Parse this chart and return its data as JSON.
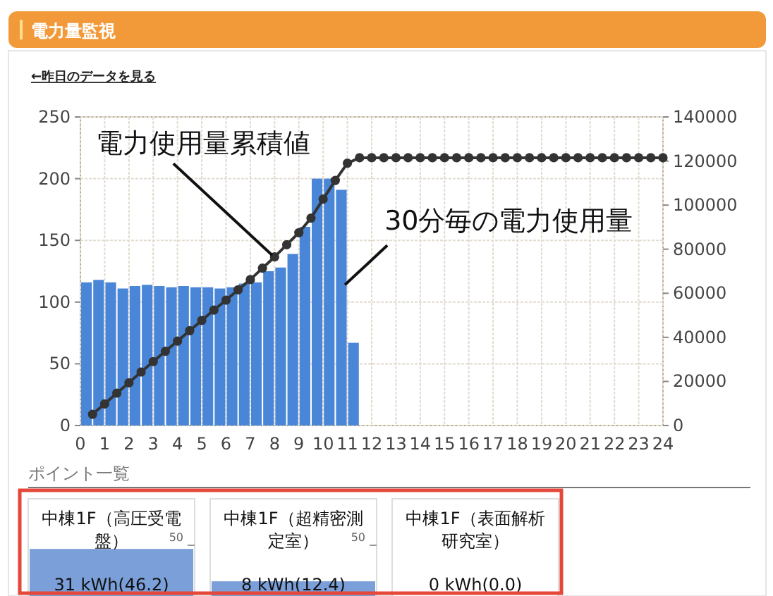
{
  "chart_data": [
    {
      "type": "bar",
      "title": "電力量監視",
      "x": [
        0.25,
        0.75,
        1.25,
        1.75,
        2.25,
        2.75,
        3.25,
        3.75,
        4.25,
        4.75,
        5.25,
        5.75,
        6.25,
        6.75,
        7.25,
        7.75,
        8.25,
        8.75,
        9.25,
        9.75,
        10.25,
        10.75,
        11.25
      ],
      "series": [
        {
          "type": "bar",
          "color": "#4a86d8",
          "values": [
            116,
            118,
            116,
            111,
            113,
            114,
            113,
            112,
            113,
            112,
            112,
            111,
            112,
            115,
            116,
            125,
            128,
            139,
            161,
            200,
            200,
            191,
            67
          ]
        },
        {
          "type": "line",
          "axis": "y2",
          "color": "#333333",
          "marker": "circle",
          "x": [
            0.5,
            1,
            1.5,
            2,
            2.5,
            3,
            3.5,
            4,
            4.5,
            5,
            5.5,
            6,
            6.5,
            7,
            7.5,
            8,
            8.5,
            9,
            9.5,
            10,
            10.5,
            11,
            11.5,
            12,
            12.5,
            13,
            13.5,
            14,
            14.5,
            15,
            15.5,
            16,
            16.5,
            17,
            17.5,
            18,
            18.5,
            19,
            19.5,
            20,
            20.5,
            21,
            21.5,
            22,
            22.5,
            23,
            23.5,
            24
          ],
          "values": [
            5100,
            9800,
            14700,
            19400,
            24300,
            29000,
            33700,
            38300,
            43000,
            47700,
            52400,
            56900,
            61600,
            66200,
            71400,
            76500,
            82000,
            87500,
            94100,
            102700,
            111200,
            119000,
            121500,
            121500,
            121500,
            121500,
            121500,
            121500,
            121500,
            121500,
            121500,
            121500,
            121500,
            121500,
            121500,
            121500,
            121500,
            121500,
            121500,
            121500,
            121500,
            121500,
            121500,
            121500,
            121500,
            121500,
            121500,
            121500
          ]
        }
      ],
      "xlim": [
        0,
        24
      ],
      "xticks": [
        0,
        1,
        2,
        3,
        4,
        5,
        6,
        7,
        8,
        9,
        10,
        11,
        12,
        13,
        14,
        15,
        16,
        17,
        18,
        19,
        20,
        21,
        22,
        23,
        24
      ],
      "ylim": [
        0,
        250
      ],
      "yticks": [
        0,
        50,
        100,
        150,
        200,
        250
      ],
      "y2lim": [
        0,
        140000
      ],
      "y2ticks": [
        0,
        20000,
        40000,
        60000,
        80000,
        100000,
        120000,
        140000
      ],
      "grid": true,
      "annotations": [
        "←昨日のデータを見る",
        {
          "text": "電力使用量累積値",
          "x": 7.9,
          "y": 138
        },
        {
          "text": "30分毎の電力使用量",
          "x": 10.9,
          "y": 114
        }
      ]
    },
    {
      "type": "other",
      "title": "ポイント一覧",
      "categories": [
        "中棟1F（高圧受電盤）",
        "中棟1F（超精密測定室）",
        "中棟1F（表面解析研究室）"
      ],
      "values": [
        46.2,
        12.4,
        0.0
      ],
      "value_labels": [
        "31 kWh(46.2)",
        "8 kWh(12.4)",
        "0 kWh(0.0)"
      ],
      "colors": [
        "#7b9fd8",
        "#7b9fd8",
        "#ffffff"
      ],
      "annotations": [
        "50",
        "50"
      ]
    }
  ]
}
